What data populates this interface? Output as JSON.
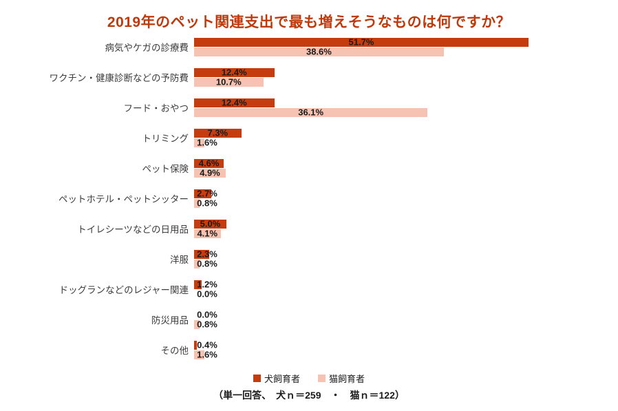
{
  "chart_data": {
    "type": "bar",
    "orientation": "horizontal",
    "title": "2019年のペット関連支出で最も増えそうなものは何ですか？",
    "categories": [
      "病気やケガの診療費",
      "ワクチン・健康診断などの予防費",
      "フード・おやつ",
      "トリミング",
      "ペット保険",
      "ペットホテル・ペットシッター",
      "トイレシーツなどの日用品",
      "洋服",
      "ドッグランなどのレジャー関連",
      "防災用品",
      "その他"
    ],
    "series": [
      {
        "key": "dog",
        "name": "犬飼育者",
        "color": "#c53d0f",
        "values": [
          51.7,
          12.4,
          12.4,
          7.3,
          4.6,
          2.7,
          5.0,
          2.3,
          1.2,
          0.0,
          0.4
        ]
      },
      {
        "key": "cat",
        "name": "猫飼育者",
        "color": "#f6c3b2",
        "values": [
          38.6,
          10.7,
          36.1,
          1.6,
          4.9,
          0.8,
          4.1,
          0.8,
          0.0,
          0.8,
          1.6
        ]
      }
    ],
    "xlim": [
      0,
      60
    ],
    "value_label_format": "0.0%",
    "legend_position": "bottom",
    "grid": false,
    "footnote": "（単一回答、　犬ｎ＝259　・　猫ｎ＝122）",
    "title_color": "#c0390b"
  }
}
